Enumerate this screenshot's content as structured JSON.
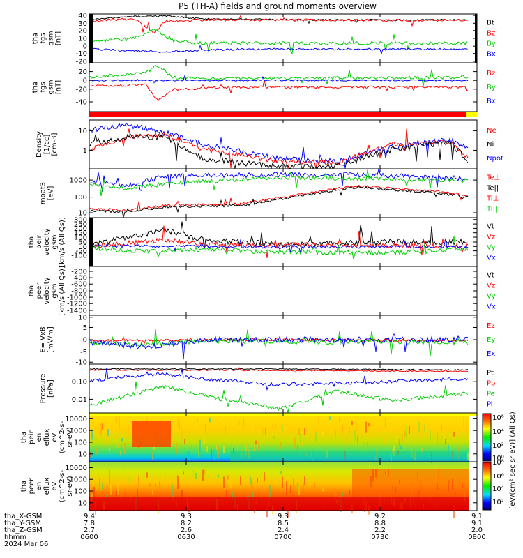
{
  "title": "P5 (TH-A) fields and ground moments overview",
  "date_label": "2024 Mar 06",
  "colors": {
    "black": "#000000",
    "red": "#ff0000",
    "green": "#00cc00",
    "blue": "#0000ff",
    "yellow": "#ffff00",
    "paleGreen": "#22dd22"
  },
  "panels": [
    {
      "id": "fgs-gsm",
      "ylabel": [
        "tha",
        "fgs",
        "gsm",
        "[nT]"
      ],
      "ticks": [
        "40",
        "30",
        "20",
        "10",
        "0",
        "-10",
        "-20"
      ],
      "legend": [
        {
          "text": "Bt",
          "color": "#000000"
        },
        {
          "text": "Bz",
          "color": "#ff0000"
        },
        {
          "text": "By",
          "color": "#00cc00"
        },
        {
          "text": "Bx",
          "color": "#0000ff"
        }
      ]
    },
    {
      "id": "fgs-gsm-dsl",
      "ylabel": [
        "tha",
        "fgs",
        "gsm",
        "[nT]"
      ],
      "ticks": [
        "20",
        "0",
        "-20",
        "-40"
      ],
      "legend": [
        {
          "text": "Bz",
          "color": "#ff0000"
        },
        {
          "text": "By",
          "color": "#00cc00"
        },
        {
          "text": "Bx",
          "color": "#0000ff"
        }
      ]
    },
    {
      "id": "density",
      "ylabel": [
        "Density",
        "[1/cc]",
        "[cm-3]"
      ],
      "ticks": [
        "10",
        "1"
      ],
      "legend": [
        {
          "text": "Ne",
          "color": "#ff0000"
        },
        {
          "text": "Ni",
          "color": "#000000"
        },
        {
          "text": "Npot",
          "color": "#0000ff"
        }
      ]
    },
    {
      "id": "temperature",
      "ylabel": [
        "moat3",
        "[eV]"
      ],
      "ticks": [
        "1000",
        "100",
        "10"
      ],
      "legend": [
        {
          "text": "Te⊥",
          "color": "#ff0000"
        },
        {
          "text": "Te||",
          "color": "#000000"
        },
        {
          "text": "Ti⊥",
          "color": "#ff0000"
        },
        {
          "text": "Ti||",
          "color": "#00cc00"
        }
      ]
    },
    {
      "id": "peir-velocity",
      "ylabel": [
        "tha",
        "peir",
        "velocity",
        "gsm",
        "[km/s (All Qs)]"
      ],
      "ticks": [
        "300",
        "250",
        "200",
        "150",
        "100",
        "50",
        "0",
        "-50",
        "-100"
      ],
      "legend": [
        {
          "text": "Vt",
          "color": "#000000"
        },
        {
          "text": "Vz",
          "color": "#ff0000"
        },
        {
          "text": "Vy",
          "color": "#00cc00"
        },
        {
          "text": "Vx",
          "color": "#0000ff"
        }
      ]
    },
    {
      "id": "peer-velocity",
      "ylabel": [
        "tha",
        "peer",
        "velocity",
        "gsm",
        "[km/s (All Qs)]"
      ],
      "ticks": [
        "-200",
        "-400",
        "-600",
        "-800",
        "-1000",
        "-1200",
        "-1400"
      ],
      "legend": [
        {
          "text": "Vt",
          "color": "#000000"
        },
        {
          "text": "Vz",
          "color": "#ff0000"
        },
        {
          "text": "Vy",
          "color": "#00cc00"
        },
        {
          "text": "Vx",
          "color": "#0000ff"
        }
      ]
    },
    {
      "id": "efield",
      "ylabel": [
        "E=-VxB",
        "[mV/m]"
      ],
      "ticks": [
        "10",
        "5",
        "0",
        "-5",
        "-10"
      ],
      "legend": [
        {
          "text": "Ez",
          "color": "#ff0000"
        },
        {
          "text": "Ey",
          "color": "#00cc00"
        },
        {
          "text": "Ex",
          "color": "#0000ff"
        }
      ]
    },
    {
      "id": "pressure",
      "ylabel": [
        "Pressure",
        "[nPa]"
      ],
      "ticks": [
        "0.10",
        "0.01"
      ],
      "legend": [
        {
          "text": "Pt",
          "color": "#000000"
        },
        {
          "text": "Pb",
          "color": "#ff0000"
        },
        {
          "text": "Pe",
          "color": "#00cc00"
        },
        {
          "text": "Pi",
          "color": "#0000ff"
        }
      ]
    },
    {
      "id": "peir-eflux",
      "ylabel": [
        "tha",
        "peir",
        "en",
        "eflux",
        "eV",
        "(cm^2-s-",
        "sr-eV)"
      ],
      "ticks": [
        "10000",
        "1000",
        "100",
        "10"
      ]
    },
    {
      "id": "peer-eflux",
      "ylabel": [
        "tha",
        "peer",
        "en",
        "eflux",
        "eV",
        "(cm^2-s-",
        "sr-eV)"
      ],
      "ticks": [
        "10000",
        "1000",
        "100",
        "10"
      ]
    }
  ],
  "colorbar": {
    "upper_ticks": [
      "10⁶",
      "10⁴",
      "10²",
      "10⁰"
    ],
    "lower_ticks": [
      "10⁸",
      "10⁶",
      "10⁴",
      "10²"
    ],
    "label": "[eV/(cm² sec sr eV)] (All Qs)"
  },
  "footer": {
    "row_labels": [
      "tha_X-GSM",
      "tha_Y-GSM",
      "tha_Z-GSM",
      "hhmm",
      "2024 Mar 06"
    ],
    "columns": [
      {
        "x": "9.4",
        "y": "7.8",
        "z": "2.7",
        "t": "0600"
      },
      {
        "x": "9.3",
        "y": "8.2",
        "z": "2.6",
        "t": "0630"
      },
      {
        "x": "9.3",
        "y": "8.5",
        "z": "2.4",
        "t": "0700"
      },
      {
        "x": "9.2",
        "y": "8.8",
        "z": "2.2",
        "t": "0730"
      },
      {
        "x": "9.1",
        "y": "9.1",
        "z": "2.0",
        "t": "0800"
      }
    ]
  },
  "chart_data": {
    "type": "line",
    "title": "P5 (TH-A) fields and ground moments overview",
    "x_axis": {
      "label": "hhmm",
      "range": [
        "0600",
        "0800"
      ],
      "ticks": [
        "0600",
        "0630",
        "0700",
        "0730",
        "0800"
      ]
    },
    "series": [
      {
        "panel": "fgs-gsm",
        "name": "Bt",
        "x": [
          "0600",
          "0610",
          "0620",
          "0630",
          "0640",
          "0700",
          "0720",
          "0740",
          "0800"
        ],
        "y": [
          35,
          36,
          35,
          36,
          34,
          32,
          32,
          33,
          30
        ]
      },
      {
        "panel": "fgs-gsm",
        "name": "Bz",
        "x": [
          "0600",
          "0610",
          "0620",
          "0630",
          "0640",
          "0700",
          "0720",
          "0740",
          "0800"
        ],
        "y": [
          33,
          34,
          30,
          36,
          33,
          30,
          31,
          32,
          28
        ]
      },
      {
        "panel": "fgs-gsm",
        "name": "By",
        "x": [
          "0600",
          "0610",
          "0620",
          "0630",
          "0640",
          "0700",
          "0720",
          "0740",
          "0800"
        ],
        "y": [
          10,
          9,
          20,
          10,
          6,
          7,
          8,
          7,
          10
        ]
      },
      {
        "panel": "fgs-gsm",
        "name": "Bx",
        "x": [
          "0600",
          "0610",
          "0620",
          "0630",
          "0640",
          "0700",
          "0720",
          "0740",
          "0800"
        ],
        "y": [
          -1,
          -2,
          -5,
          -3,
          -4,
          -3,
          -3,
          -4,
          -3
        ]
      },
      {
        "panel": "density",
        "name": "Ne",
        "x": [
          "0600",
          "0615",
          "0630",
          "0645",
          "0700",
          "0715",
          "0730",
          "0745",
          "0800"
        ],
        "y": [
          0.8,
          6,
          3,
          0.6,
          0.3,
          0.5,
          0.8,
          0.3,
          1.5
        ]
      },
      {
        "panel": "pressure",
        "name": "Pt",
        "x": [
          "0600",
          "0630",
          "0700",
          "0730",
          "0800"
        ],
        "y": [
          0.25,
          0.28,
          0.23,
          0.27,
          0.24
        ]
      },
      {
        "panel": "pressure",
        "name": "Pe",
        "x": [
          "0600",
          "0615",
          "0630",
          "0700",
          "0730",
          "0800"
        ],
        "y": [
          0.015,
          0.08,
          0.01,
          0.003,
          0.01,
          0.03
        ]
      }
    ]
  }
}
